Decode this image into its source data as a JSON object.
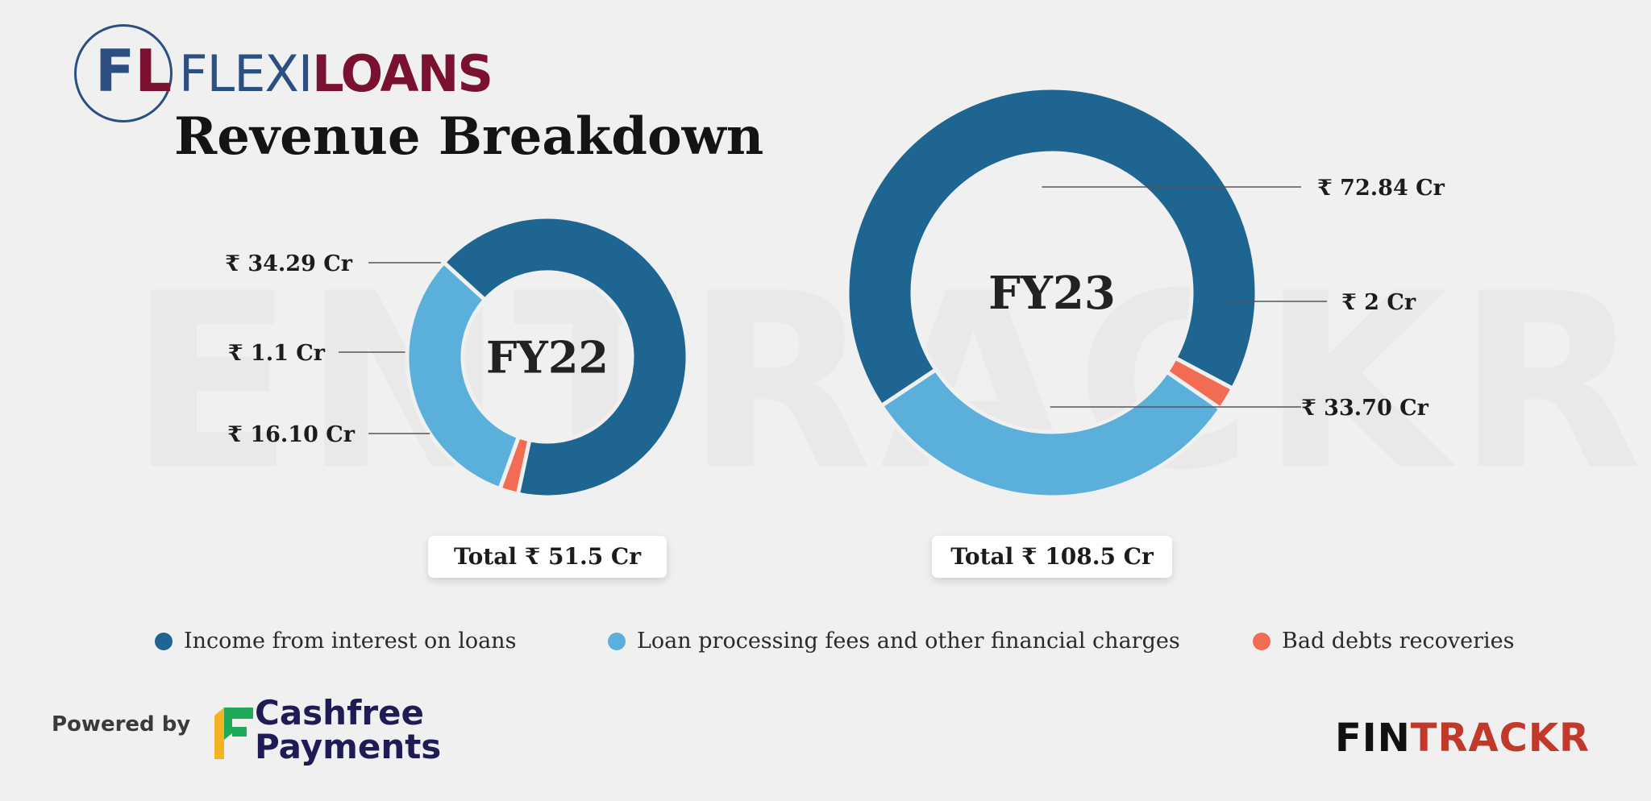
{
  "logo": {
    "part1": "FLEXI",
    "part2": "LOANS",
    "mark_f": "F",
    "mark_l": "L"
  },
  "watermark": "ENTRACKR",
  "title": "Revenue Breakdown",
  "colors": {
    "interest": "#1f6591",
    "processing": "#5ab0da",
    "bad_debts": "#f26c54",
    "background": "#f0f0f0"
  },
  "chart_data": [
    {
      "type": "pie",
      "center_label": "FY22",
      "total_label": "Total ₹ 51.5 Cr",
      "slices": [
        {
          "category": "Income from interest on loans",
          "value": 34.29,
          "label": "₹ 34.29 Cr"
        },
        {
          "category": "Bad debts recoveries",
          "value": 1.1,
          "label": "₹ 1.1 Cr"
        },
        {
          "category": "Loan processing fees and other financial charges",
          "value": 16.1,
          "label": "₹ 16.10 Cr"
        }
      ]
    },
    {
      "type": "pie",
      "center_label": "FY23",
      "total_label": "Total ₹ 108.5 Cr",
      "slices": [
        {
          "category": "Income from interest on loans",
          "value": 72.84,
          "label": "₹ 72.84 Cr"
        },
        {
          "category": "Bad debts recoveries",
          "value": 2,
          "label": "₹ 2 Cr"
        },
        {
          "category": "Loan processing fees and other financial charges",
          "value": 33.7,
          "label": "₹ 33.70 Cr"
        }
      ]
    }
  ],
  "legend": [
    {
      "label": "Income from interest on loans",
      "color": "#1f6591"
    },
    {
      "label": "Loan processing fees and other financial charges",
      "color": "#5ab0da"
    },
    {
      "label": "Bad debts recoveries",
      "color": "#f26c54"
    }
  ],
  "footer": {
    "powered_by": "Powered by",
    "cashfree_line1": "Cashfree",
    "cashfree_line2": "Payments",
    "brand_part1": "FIN",
    "brand_part2": "TRACKR"
  }
}
